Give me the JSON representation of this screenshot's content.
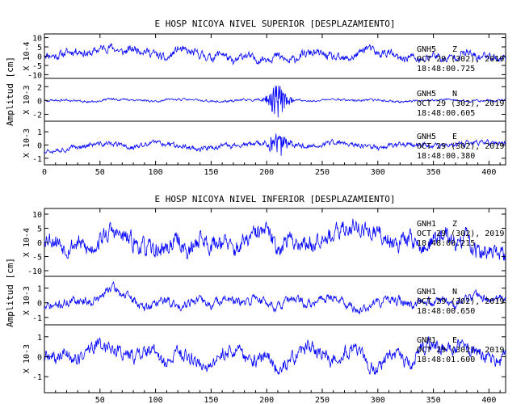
{
  "chart_data": [
    {
      "type": "line",
      "title": "E HOSP NICOYA NIVEL SUPERIOR [DESPLAZAMIENTO]",
      "ylabel": "Amplitud [cm]",
      "xlim": [
        0,
        415
      ],
      "x_ticks": [
        "0",
        "50",
        "100",
        "150",
        "200",
        "250",
        "300",
        "350",
        "400"
      ],
      "trace_color": "#0000ff",
      "panels": [
        {
          "scale_label": "X 10-4",
          "ylim": [
            -12,
            12
          ],
          "y_ticks": [
            "10",
            "5",
            "0",
            "-5",
            "-10"
          ],
          "y_tick_values": [
            10,
            5,
            0,
            -5,
            -10
          ],
          "station": "GNH5",
          "component": "Z",
          "date": "OCT 29 (302), 2019",
          "time": "18:48:00.725",
          "series": {
            "x": [
              0,
              10,
              20,
              30,
              40,
              50,
              60,
              70,
              80,
              90,
              100,
              110,
              120,
              130,
              140,
              150,
              160,
              170,
              180,
              190,
              200,
              210,
              220,
              230,
              240,
              250,
              260,
              270,
              280,
              290,
              300,
              310,
              320,
              330,
              340,
              350,
              360,
              370,
              380,
              390,
              400,
              410,
              415
            ],
            "y": [
              1,
              0,
              2,
              3,
              1,
              4,
              5,
              2,
              4,
              3,
              1,
              -2,
              4,
              2,
              1,
              -1,
              2,
              -4,
              1,
              -2,
              -1,
              0,
              -3,
              0,
              2,
              1,
              -1,
              -2,
              0,
              5,
              1,
              2,
              -2,
              0,
              -3,
              1,
              -2,
              0,
              2,
              -1,
              1,
              -2,
              0
            ],
            "noise_amp": 2.5,
            "seed": 11
          }
        },
        {
          "scale_label": "X 10-3",
          "ylim": [
            -3,
            3.2
          ],
          "y_ticks": [
            "2",
            "0",
            "-2"
          ],
          "y_tick_values": [
            2,
            0,
            -2
          ],
          "station": "GNH5",
          "component": "N",
          "date": "OCT 29 (302), 2019",
          "time": "18:48:00.605",
          "series": {
            "x": [
              0,
              20,
              40,
              60,
              80,
              100,
              120,
              140,
              160,
              180,
              200,
              220,
              240,
              260,
              280,
              300,
              320,
              340,
              360,
              380,
              400,
              415
            ],
            "y": [
              0,
              0.1,
              -0.2,
              0.2,
              0.1,
              -0.1,
              0.2,
              0,
              -0.2,
              0.1,
              0,
              0.1,
              -0.1,
              0.2,
              0,
              0.1,
              -0.2,
              0,
              0.1,
              -0.1,
              0,
              0
            ],
            "noise_amp": 0.18,
            "burst": {
              "center": 210,
              "width": 9,
              "amp": 2.4
            },
            "seed": 23
          }
        },
        {
          "scale_label": "X 10-3",
          "ylim": [
            -1.5,
            1.8
          ],
          "y_ticks": [
            "1",
            "0",
            "-1"
          ],
          "y_tick_values": [
            1,
            0,
            -1
          ],
          "station": "GNH5",
          "component": "E",
          "date": "OCT 29 (302), 2019",
          "time": "18:48:00.380",
          "series": {
            "x": [
              0,
              20,
              40,
              60,
              80,
              100,
              120,
              140,
              160,
              180,
              200,
              220,
              240,
              260,
              280,
              300,
              320,
              340,
              360,
              380,
              400,
              415
            ],
            "y": [
              -0.4,
              -0.3,
              0,
              0.1,
              -0.2,
              0.2,
              0,
              -0.3,
              -0.1,
              0,
              0.1,
              0,
              -0.1,
              0.2,
              0,
              -0.2,
              0.1,
              0,
              -0.1,
              0.1,
              0.2,
              0.1
            ],
            "noise_amp": 0.22,
            "burst": {
              "center": 210,
              "width": 9,
              "amp": 0.85
            },
            "seed": 37
          }
        }
      ]
    },
    {
      "type": "line",
      "title": "E HOSP NICOYA NIVEL INFERIOR [DESPLAZAMIENTO]",
      "ylabel": "Amplitud [cm]",
      "xlim": [
        0,
        415
      ],
      "x_ticks": [
        "50",
        "100",
        "150",
        "200",
        "250",
        "300",
        "350",
        "400"
      ],
      "trace_color": "#0000ff",
      "panels": [
        {
          "scale_label": "X 10-4",
          "ylim": [
            -12,
            12
          ],
          "y_ticks": [
            "10",
            "5",
            "0",
            "-5",
            "-10"
          ],
          "y_tick_values": [
            10,
            5,
            0,
            -5,
            -10
          ],
          "station": "GNH1",
          "component": "Z",
          "date": "OCT 29 (302), 2019",
          "time": "18:48:00.215",
          "series": {
            "x": [
              0,
              10,
              20,
              30,
              40,
              50,
              60,
              70,
              80,
              90,
              100,
              110,
              120,
              130,
              140,
              150,
              160,
              170,
              180,
              190,
              200,
              210,
              220,
              230,
              240,
              250,
              260,
              270,
              280,
              290,
              300,
              310,
              320,
              330,
              340,
              350,
              360,
              370,
              380,
              390,
              400,
              410,
              415
            ],
            "y": [
              2,
              1,
              -2,
              0,
              -3,
              1,
              4,
              2,
              0,
              -2,
              -3,
              -2,
              1,
              -4,
              2,
              -1,
              1,
              -3,
              0,
              3,
              4,
              -2,
              1,
              0,
              -1,
              3,
              2,
              5,
              6,
              4,
              3,
              1,
              0,
              2,
              -3,
              1,
              3,
              -1,
              2,
              -4,
              -3,
              -5,
              -5
            ],
            "noise_amp": 3.5,
            "seed": 53
          }
        },
        {
          "scale_label": "X 10-3",
          "ylim": [
            -1.5,
            1.8
          ],
          "y_ticks": [
            "1",
            "0",
            "-1"
          ],
          "y_tick_values": [
            1,
            0,
            -1
          ],
          "station": "GNH1",
          "component": "N",
          "date": "OCT 29 (302), 2019",
          "time": "18:48:00.650",
          "series": {
            "x": [
              0,
              10,
              20,
              30,
              40,
              50,
              60,
              70,
              80,
              90,
              100,
              110,
              120,
              130,
              140,
              150,
              160,
              170,
              180,
              190,
              200,
              210,
              220,
              230,
              240,
              250,
              260,
              270,
              280,
              290,
              300,
              310,
              320,
              330,
              340,
              350,
              360,
              370,
              380,
              390,
              400,
              410,
              415
            ],
            "y": [
              -0.3,
              -0.2,
              0,
              0.2,
              0.1,
              0.3,
              1.1,
              0.6,
              0.2,
              -0.4,
              0,
              0.2,
              -0.3,
              0.1,
              0.2,
              -0.2,
              0.3,
              0.1,
              -0.1,
              0.4,
              0,
              -0.3,
              0.2,
              0.1,
              -0.2,
              0.3,
              0.4,
              0,
              -0.5,
              -0.4,
              0,
              0.2,
              0.1,
              -0.2,
              0.3,
              0,
              0.2,
              -0.1,
              0.3,
              0.5,
              0.2,
              0.3,
              0.3
            ],
            "noise_amp": 0.35,
            "seed": 71
          }
        },
        {
          "scale_label": "X 10-3",
          "ylim": [
            -1.8,
            1.6
          ],
          "y_ticks": [
            "1",
            "0",
            "-1"
          ],
          "y_tick_values": [
            1,
            0,
            -1
          ],
          "station": "GNH1",
          "component": "E",
          "date": "OCT 29 (302), 2019",
          "time": "18:48:01.600",
          "series": {
            "x": [
              0,
              10,
              20,
              30,
              40,
              50,
              60,
              70,
              80,
              90,
              100,
              110,
              120,
              130,
              140,
              150,
              160,
              170,
              180,
              190,
              200,
              210,
              220,
              230,
              240,
              250,
              260,
              270,
              280,
              290,
              300,
              310,
              320,
              330,
              340,
              350,
              360,
              370,
              380,
              390,
              400,
              410,
              415
            ],
            "y": [
              0,
              -0.1,
              0.2,
              -0.2,
              0.4,
              0.6,
              0.5,
              0.2,
              0,
              0.3,
              0.2,
              -0.5,
              0.3,
              0,
              -0.3,
              -0.6,
              0.2,
              0.4,
              0,
              -0.2,
              0.1,
              -0.6,
              -0.3,
              0.2,
              0.5,
              0.1,
              -0.2,
              0.3,
              0.4,
              -0.3,
              -0.7,
              0.2,
              -0.1,
              -0.4,
              0.4,
              0.7,
              0.3,
              0.5,
              0.4,
              0.2,
              0,
              -0.2,
              0.2
            ],
            "noise_amp": 0.4,
            "seed": 89
          }
        }
      ]
    }
  ]
}
